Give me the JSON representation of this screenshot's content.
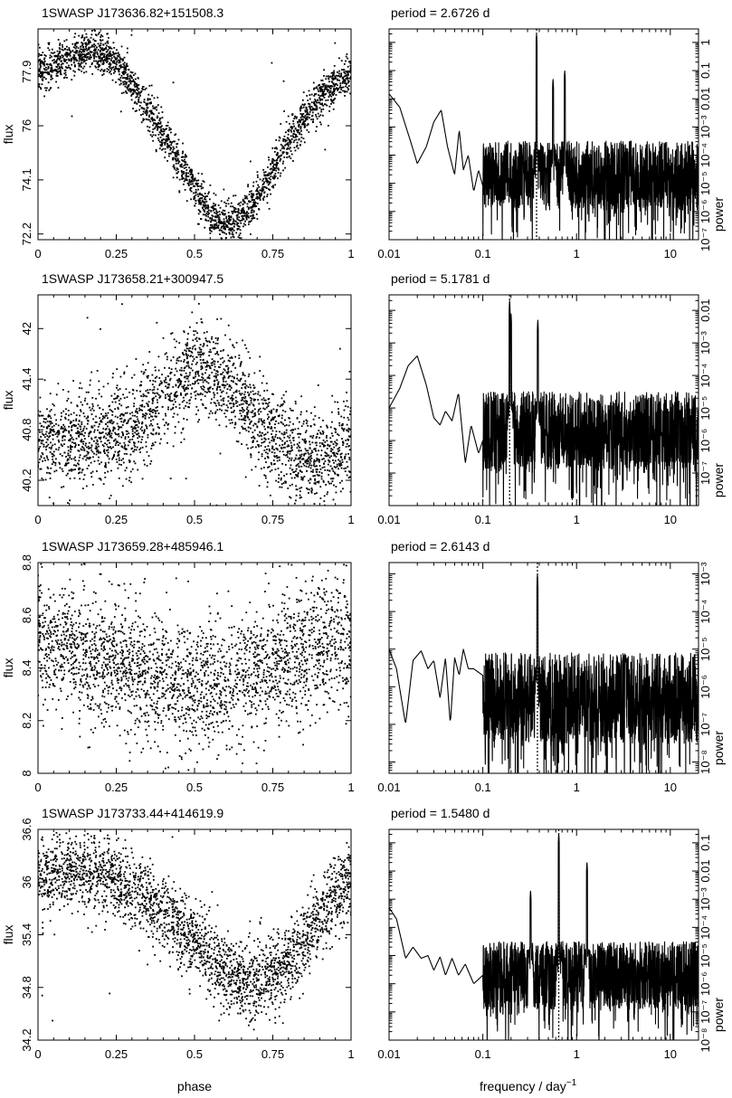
{
  "figure": {
    "xlabel_left": "phase",
    "xlabel_right_main": "frequency / day",
    "xlabel_right_exp": "−1"
  },
  "chart_data": [
    {
      "type": "scatter",
      "title": "1SWASP J173636.82+151508.3",
      "xlabel": "phase",
      "ylabel": "flux",
      "xlim": [
        0,
        1
      ],
      "ylim": [
        72.0,
        79.4
      ],
      "x_ticks": [
        0,
        0.25,
        0.5,
        0.75,
        1
      ],
      "x_tick_labels": [
        "0",
        "0.25",
        "0.5",
        "0.75",
        "1"
      ],
      "y_ticks": [
        72.2,
        74.1,
        76,
        77.9
      ],
      "y_tick_labels": [
        "72.2",
        "74.1",
        "76",
        "77.9"
      ],
      "curve": {
        "x": [
          0,
          0.1,
          0.17,
          0.25,
          0.35,
          0.45,
          0.55,
          0.62,
          0.7,
          0.8,
          0.9,
          1.0
        ],
        "y": [
          77.9,
          78.4,
          78.7,
          78.2,
          76.6,
          74.8,
          72.9,
          72.5,
          73.4,
          75.5,
          77.0,
          77.9
        ]
      },
      "scatter_sigma": 0.35,
      "n_points": 2500
    },
    {
      "type": "line",
      "title": "period =    2.6726 d",
      "xlabel": "frequency / day−1",
      "ylabel": "power",
      "x_scale": "log",
      "xlim": [
        0.01,
        20
      ],
      "x_ticks": [
        0.01,
        0.1,
        1,
        10
      ],
      "x_tick_labels": [
        "0.01",
        "0.1",
        "1",
        "10"
      ],
      "y_scale": "log",
      "ylim": [
        1e-07,
        3
      ],
      "y_ticks": [
        1e-07,
        1e-06,
        1e-05,
        0.0001,
        0.001,
        0.01,
        0.1,
        1
      ],
      "y_tick_labels": [
        "10⁻⁷",
        "10⁻⁶",
        "10⁻⁵",
        "10⁻⁴",
        "10⁻³",
        "0.01",
        "0.1",
        "1"
      ],
      "period_marker_frequency": 0.3742,
      "peaks": [
        {
          "frequency": 0.3742,
          "power": 2
        },
        {
          "frequency": 0.7484,
          "power": 0.1
        },
        {
          "frequency": 0.5613,
          "power": 0.05
        }
      ],
      "smooth_lowfreq": {
        "x": [
          0.01,
          0.013,
          0.017,
          0.02,
          0.025,
          0.03,
          0.036,
          0.042,
          0.05,
          0.056,
          0.062,
          0.07,
          0.08,
          0.09,
          0.1
        ],
        "y": [
          0.015,
          0.005,
          0.0003,
          5e-05,
          0.0002,
          0.0015,
          0.004,
          0.0002,
          2e-05,
          0.0008,
          3e-05,
          0.0001,
          5e-06,
          3e-05,
          8e-06
        ]
      },
      "noise_level": 2e-05
    },
    {
      "type": "scatter",
      "title": "1SWASP J173658.21+300947.5",
      "xlabel": "phase",
      "ylabel": "flux",
      "xlim": [
        0,
        1
      ],
      "ylim": [
        39.9,
        42.4
      ],
      "x_ticks": [
        0,
        0.25,
        0.5,
        0.75,
        1
      ],
      "x_tick_labels": [
        "0",
        "0.25",
        "0.5",
        "0.75",
        "1"
      ],
      "y_ticks": [
        40.2,
        40.8,
        41.4,
        42
      ],
      "y_tick_labels": [
        "40.2",
        "40.8",
        "41.4",
        "42"
      ],
      "curve": {
        "x": [
          0,
          0.1,
          0.2,
          0.3,
          0.4,
          0.5,
          0.6,
          0.7,
          0.8,
          0.9,
          1.0
        ],
        "y": [
          40.7,
          40.65,
          40.75,
          40.8,
          41.2,
          41.55,
          41.35,
          40.95,
          40.55,
          40.4,
          40.7
        ]
      },
      "scatter_sigma": 0.28,
      "n_points": 2500
    },
    {
      "type": "line",
      "title": "period =    5.1781 d",
      "xlabel": "frequency / day−1",
      "ylabel": "power",
      "x_scale": "log",
      "xlim": [
        0.01,
        20
      ],
      "x_ticks": [
        0.01,
        0.1,
        1,
        10
      ],
      "x_tick_labels": [
        "0.01",
        "0.1",
        "1",
        "10"
      ],
      "y_scale": "log",
      "ylim": [
        1e-08,
        0.03
      ],
      "y_ticks": [
        1e-07,
        1e-06,
        1e-05,
        0.0001,
        0.001,
        0.01
      ],
      "y_tick_labels": [
        "10⁻⁷",
        "10⁻⁶",
        "10⁻⁵",
        "10⁻⁴",
        "10⁻³",
        "0.01"
      ],
      "period_marker_frequency": 0.1931,
      "peaks": [
        {
          "frequency": 0.1931,
          "power": 0.02
        },
        {
          "frequency": 0.3862,
          "power": 0.005
        },
        {
          "frequency": 0.2,
          "power": 0.008
        }
      ],
      "smooth_lowfreq": {
        "x": [
          0.01,
          0.013,
          0.016,
          0.02,
          0.025,
          0.03,
          0.035,
          0.04,
          0.047,
          0.055,
          0.065,
          0.075,
          0.09,
          0.1
        ],
        "y": [
          1e-05,
          4e-05,
          0.0002,
          0.0004,
          5e-05,
          5e-06,
          3e-06,
          8e-06,
          4e-06,
          3e-05,
          2e-07,
          3e-06,
          4e-07,
          1e-06
        ]
      },
      "noise_level": 2e-06
    },
    {
      "type": "scatter",
      "title": "1SWASP J173659.28+485946.1",
      "xlabel": "phase",
      "ylabel": "flux",
      "xlim": [
        0,
        1
      ],
      "ylim": [
        8.0,
        8.8
      ],
      "x_ticks": [
        0,
        0.25,
        0.5,
        0.75,
        1
      ],
      "x_tick_labels": [
        "0",
        "0.25",
        "0.5",
        "0.75",
        "1"
      ],
      "y_ticks": [
        8,
        8.2,
        8.4,
        8.6,
        8.8
      ],
      "y_tick_labels": [
        "8",
        "8.2",
        "8.4",
        "8.6",
        "8.8"
      ],
      "curve": {
        "x": [
          0,
          0.1,
          0.2,
          0.3,
          0.4,
          0.5,
          0.6,
          0.7,
          0.8,
          0.9,
          1.0
        ],
        "y": [
          8.5,
          8.48,
          8.43,
          8.39,
          8.36,
          8.33,
          8.35,
          8.4,
          8.45,
          8.48,
          8.5
        ]
      },
      "scatter_sigma": 0.12,
      "n_points": 2600
    },
    {
      "type": "line",
      "title": "period =    2.6143 d",
      "xlabel": "frequency / day−1",
      "ylabel": "power",
      "x_scale": "log",
      "xlim": [
        0.01,
        20
      ],
      "x_ticks": [
        0.01,
        0.1,
        1,
        10
      ],
      "x_tick_labels": [
        "0.01",
        "0.1",
        "1",
        "10"
      ],
      "y_scale": "log",
      "ylim": [
        5e-09,
        0.002
      ],
      "y_ticks": [
        1e-08,
        1e-07,
        1e-06,
        1e-05,
        0.0001,
        0.001
      ],
      "y_tick_labels": [
        "10⁻⁸",
        "10⁻⁷",
        "10⁻⁶",
        "10⁻⁵",
        "10⁻⁴",
        "10⁻³"
      ],
      "period_marker_frequency": 0.3825,
      "peaks": [
        {
          "frequency": 0.3825,
          "power": 0.001
        }
      ],
      "smooth_lowfreq": {
        "x": [
          0.01,
          0.012,
          0.015,
          0.018,
          0.022,
          0.026,
          0.03,
          0.035,
          0.04,
          0.045,
          0.05,
          0.056,
          0.062,
          0.07,
          0.08,
          0.1
        ],
        "y": [
          1e-05,
          3e-06,
          1e-07,
          5e-06,
          9e-06,
          3e-06,
          5e-06,
          5e-07,
          6e-06,
          1e-07,
          6e-06,
          2e-06,
          1e-05,
          3e-06,
          3e-06,
          2e-06
        ]
      },
      "noise_level": 5e-07
    },
    {
      "type": "scatter",
      "title": "1SWASP J173733.44+414619.9",
      "xlabel": "phase",
      "ylabel": "flux",
      "xlim": [
        0,
        1
      ],
      "ylim": [
        34.2,
        36.6
      ],
      "x_ticks": [
        0,
        0.25,
        0.5,
        0.75,
        1
      ],
      "x_tick_labels": [
        "0",
        "0.25",
        "0.5",
        "0.75",
        "1"
      ],
      "y_ticks": [
        34.2,
        34.8,
        35.4,
        36,
        36.6
      ],
      "y_tick_labels": [
        "34.2",
        "34.8",
        "35.4",
        "36",
        "36.6"
      ],
      "curve": {
        "x": [
          0,
          0.1,
          0.2,
          0.3,
          0.4,
          0.5,
          0.6,
          0.7,
          0.8,
          0.9,
          1.0
        ],
        "y": [
          36.05,
          36.15,
          36.1,
          35.9,
          35.65,
          35.3,
          34.95,
          34.85,
          35.1,
          35.6,
          36.05
        ]
      },
      "scatter_sigma": 0.22,
      "n_points": 2600
    },
    {
      "type": "line",
      "title": "period =    1.5480 d",
      "xlabel": "frequency / day−1",
      "ylabel": "power",
      "x_scale": "log",
      "xlim": [
        0.01,
        20
      ],
      "x_ticks": [
        0.01,
        0.1,
        1,
        10
      ],
      "x_tick_labels": [
        "0.01",
        "0.1",
        "1",
        "10"
      ],
      "y_scale": "log",
      "ylim": [
        1e-08,
        0.3
      ],
      "y_ticks": [
        1e-08,
        1e-07,
        1e-06,
        1e-05,
        0.0001,
        0.001,
        0.01,
        0.1
      ],
      "y_tick_labels": [
        "10⁻⁸",
        "10⁻⁷",
        "10⁻⁶",
        "10⁻⁵",
        "10⁻⁴",
        "10⁻³",
        "0.01",
        "0.1"
      ],
      "period_marker_frequency": 0.646,
      "peaks": [
        {
          "frequency": 0.646,
          "power": 0.2
        },
        {
          "frequency": 1.292,
          "power": 0.02
        },
        {
          "frequency": 0.323,
          "power": 0.002
        }
      ],
      "smooth_lowfreq": {
        "x": [
          0.01,
          0.012,
          0.015,
          0.018,
          0.022,
          0.026,
          0.03,
          0.035,
          0.04,
          0.047,
          0.055,
          0.065,
          0.08,
          0.1
        ],
        "y": [
          0.0005,
          0.0002,
          8e-06,
          2e-05,
          8e-06,
          1e-05,
          3e-06,
          9e-06,
          2e-06,
          8e-06,
          2e-06,
          5e-06,
          1e-06,
          2e-06
        ]
      },
      "noise_level": 2e-06
    }
  ]
}
